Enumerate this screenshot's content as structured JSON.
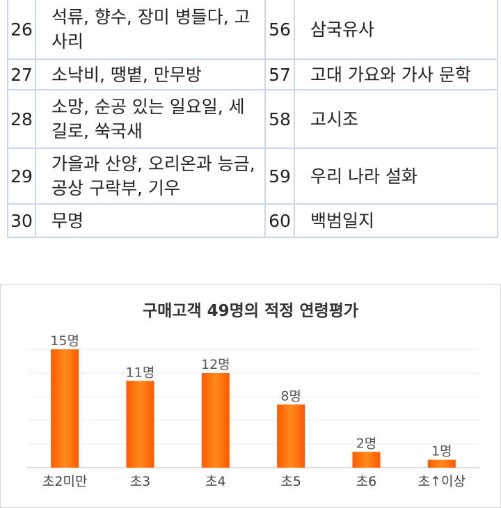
{
  "table": {
    "rows": [
      {
        "n1": "26",
        "t1": "석류, 향수, 장미 병들다, 고사리",
        "n2": "56",
        "t2": "삼국유사"
      },
      {
        "n1": "27",
        "t1": "소낙비, 땡볕, 만무방",
        "n2": "57",
        "t2": "고대 가요와 가사 문학"
      },
      {
        "n1": "28",
        "t1": "소망, 순공 있는 일요일, 세 길로, 쑥국새",
        "n2": "58",
        "t2": "고시조"
      },
      {
        "n1": "29",
        "t1": "가을과 산양, 오리온과 능금, 공상 구락부, 기우",
        "n2": "59",
        "t2": "우리 나라 설화"
      },
      {
        "n1": "30",
        "t1": "무명",
        "n2": "60",
        "t2": "백범일지"
      }
    ]
  },
  "chart_data": {
    "type": "bar",
    "title": "구매고객 49명의 적정 연령평가",
    "categories": [
      "초2미만",
      "초3",
      "초4",
      "초5",
      "초6",
      "초↑이상"
    ],
    "values": [
      15,
      11,
      12,
      8,
      2,
      1
    ],
    "data_labels": [
      "15명",
      "11명",
      "12명",
      "8명",
      "2명",
      "1명"
    ],
    "bar_color": "#ff5a00",
    "bar_highlight": "#ff8a1c",
    "grid": true
  }
}
